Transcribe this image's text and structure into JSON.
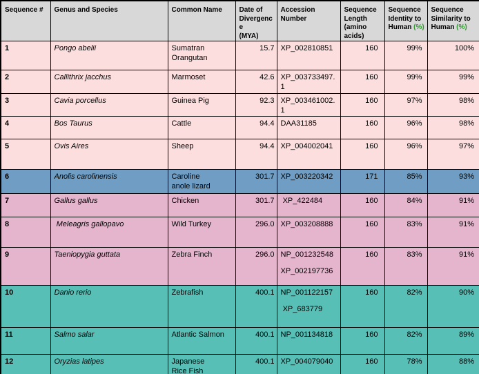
{
  "colors": {
    "header_bg": "#d8d8d8",
    "group_pink": "#fcdede",
    "group_blue": "#6f9dc4",
    "group_mauve": "#e5b5ce",
    "group_teal": "#57bfb6",
    "border": "#000000",
    "percent_green": "#339933",
    "text": "#000000"
  },
  "columns": [
    {
      "key": "sequence-number",
      "lines": [
        "Sequence #"
      ]
    },
    {
      "key": "genus-species",
      "lines": [
        "Genus and Species"
      ]
    },
    {
      "key": "common-name",
      "lines": [
        "Common Name"
      ]
    },
    {
      "key": "divergence-mya",
      "lines": [
        "Date of",
        "Divergence",
        "(MYA)"
      ]
    },
    {
      "key": "accession-number",
      "lines": [
        "Accession Number"
      ]
    },
    {
      "key": "sequence-length",
      "lines": [
        "Sequence",
        "Length",
        "(amino acids)"
      ]
    },
    {
      "key": "identity-human",
      "lines": [
        "Sequence",
        "Identity to",
        "Human"
      ],
      "green_suffix": "(%)"
    },
    {
      "key": "similarity-human",
      "lines": [
        "Sequence",
        "Similarity to",
        "Human"
      ],
      "green_suffix": "(%)"
    }
  ],
  "rows": [
    {
      "seq": "1",
      "genus": "Pongo abelii",
      "common": [
        "Sumatran",
        "Orangutan"
      ],
      "mya": "15.7",
      "accession": [
        "XP_002810851"
      ],
      "length": "160",
      "identity": "99%",
      "similarity": "100%",
      "group": "pink"
    },
    {
      "seq": "2",
      "genus": "Callithrix jacchus",
      "common": [
        "Marmoset"
      ],
      "mya": "42.6",
      "accession": [
        "XP_003733497.1"
      ],
      "length": "160",
      "identity": "99%",
      "similarity": "99%",
      "group": "pink"
    },
    {
      "seq": "3",
      "genus": "Cavia porcellus",
      "common": [
        "Guinea Pig"
      ],
      "mya": "92.3",
      "accession": [
        "XP_003461002.1"
      ],
      "length": "160",
      "identity": "97%",
      "similarity": "98%",
      "group": "pink"
    },
    {
      "seq": "4",
      "genus": "Bos Taurus",
      "common": [
        "Cattle"
      ],
      "mya": "94.4",
      "accession": [
        "DAA31185"
      ],
      "length": "160",
      "identity": "96%",
      "similarity": "98%",
      "group": "pink"
    },
    {
      "seq": "5",
      "genus": "Ovis Aires",
      "common": [
        "Sheep"
      ],
      "mya": "94.4",
      "accession": [
        "XP_004002041"
      ],
      "length": "160",
      "identity": "96%",
      "similarity": "97%",
      "group": "pink"
    },
    {
      "seq": "6",
      "genus": "Anolis carolinensis",
      "common": [
        "Caroline",
        "anole lizard"
      ],
      "mya": "301.7",
      "accession": [
        "XP_003220342"
      ],
      "length": "171",
      "identity": "85%",
      "similarity": "93%",
      "group": "blue"
    },
    {
      "seq": "7",
      "genus": "Gallus gallus",
      "common": [
        "Chicken"
      ],
      "mya": "301.7",
      "accession": [
        " XP_422484"
      ],
      "length": "160",
      "identity": "84%",
      "similarity": "91%",
      "group": "mauve"
    },
    {
      "seq": "8",
      "genus": " Meleagris gallopavo",
      "common": [
        "Wild Turkey"
      ],
      "mya": "296.0",
      "accession": [
        "XP_003208888"
      ],
      "length": "160",
      "identity": "83%",
      "similarity": "91%",
      "group": "mauve"
    },
    {
      "seq": "9",
      "genus": "Taeniopygia guttata",
      "common": [
        "Zebra Finch"
      ],
      "mya": "296.0",
      "accession": [
        "NP_001232548",
        "XP_002197736"
      ],
      "length": "160",
      "identity": "83%",
      "similarity": "91%",
      "group": "mauve"
    },
    {
      "seq": "10",
      "genus": "Danio rerio",
      "common": [
        "Zebrafish"
      ],
      "mya": "400.1",
      "accession": [
        "NP_001122157",
        " XP_683779"
      ],
      "length": "160",
      "identity": "82%",
      "similarity": "90%",
      "group": "teal"
    },
    {
      "seq": "11",
      "genus": "Salmo salar",
      "common": [
        "Atlantic Salmon"
      ],
      "mya": "400.1",
      "accession": [
        "NP_001134818"
      ],
      "length": "160",
      "identity": "82%",
      "similarity": "89%",
      "group": "teal"
    },
    {
      "seq": "12",
      "genus": "Oryzias latipes",
      "common": [
        "Japanese",
        "Rice Fish"
      ],
      "mya": "400.1",
      "accession": [
        "XP_004079040"
      ],
      "length": "160",
      "identity": "78%",
      "similarity": "88%",
      "group": "teal"
    }
  ],
  "partial_row": {
    "group": "teal"
  }
}
